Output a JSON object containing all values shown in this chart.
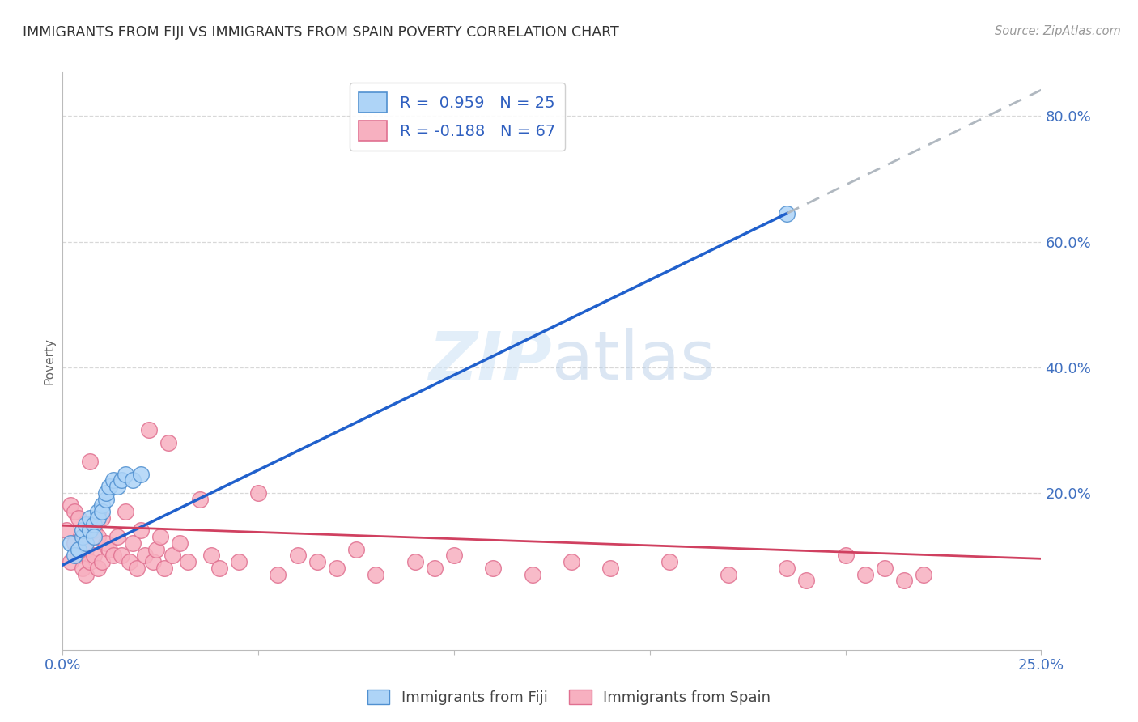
{
  "title": "IMMIGRANTS FROM FIJI VS IMMIGRANTS FROM SPAIN POVERTY CORRELATION CHART",
  "source_text": "Source: ZipAtlas.com",
  "ylabel": "Poverty",
  "x_min": 0.0,
  "x_max": 0.25,
  "y_min": -0.05,
  "y_max": 0.87,
  "fiji_color": "#aed4f7",
  "fiji_edge_color": "#5090d0",
  "spain_color": "#f7b0c0",
  "spain_edge_color": "#e07090",
  "fiji_line_color": "#2060cc",
  "spain_line_color": "#d04060",
  "dash_line_color": "#b0b8c0",
  "fiji_R": 0.959,
  "fiji_N": 25,
  "spain_R": -0.188,
  "spain_N": 67,
  "grid_color": "#d8d8d8",
  "background_color": "#ffffff",
  "fiji_scatter_x": [
    0.002,
    0.003,
    0.004,
    0.005,
    0.005,
    0.006,
    0.006,
    0.007,
    0.007,
    0.008,
    0.008,
    0.009,
    0.009,
    0.01,
    0.01,
    0.011,
    0.011,
    0.012,
    0.013,
    0.014,
    0.015,
    0.016,
    0.018,
    0.02,
    0.185
  ],
  "fiji_scatter_y": [
    0.12,
    0.1,
    0.11,
    0.13,
    0.14,
    0.12,
    0.15,
    0.14,
    0.16,
    0.15,
    0.13,
    0.17,
    0.16,
    0.18,
    0.17,
    0.19,
    0.2,
    0.21,
    0.22,
    0.21,
    0.22,
    0.23,
    0.22,
    0.23,
    0.645
  ],
  "spain_scatter_x": [
    0.001,
    0.002,
    0.002,
    0.003,
    0.003,
    0.004,
    0.004,
    0.005,
    0.005,
    0.006,
    0.006,
    0.007,
    0.007,
    0.007,
    0.008,
    0.008,
    0.009,
    0.009,
    0.01,
    0.01,
    0.011,
    0.012,
    0.013,
    0.014,
    0.015,
    0.016,
    0.017,
    0.018,
    0.019,
    0.02,
    0.021,
    0.022,
    0.023,
    0.024,
    0.025,
    0.026,
    0.027,
    0.028,
    0.03,
    0.032,
    0.035,
    0.038,
    0.04,
    0.045,
    0.05,
    0.055,
    0.06,
    0.065,
    0.07,
    0.075,
    0.08,
    0.09,
    0.095,
    0.1,
    0.11,
    0.12,
    0.13,
    0.14,
    0.155,
    0.17,
    0.185,
    0.19,
    0.2,
    0.205,
    0.21,
    0.215,
    0.22
  ],
  "spain_scatter_y": [
    0.14,
    0.09,
    0.18,
    0.12,
    0.17,
    0.1,
    0.16,
    0.08,
    0.13,
    0.07,
    0.11,
    0.09,
    0.15,
    0.25,
    0.1,
    0.14,
    0.08,
    0.13,
    0.09,
    0.16,
    0.12,
    0.11,
    0.1,
    0.13,
    0.1,
    0.17,
    0.09,
    0.12,
    0.08,
    0.14,
    0.1,
    0.3,
    0.09,
    0.11,
    0.13,
    0.08,
    0.28,
    0.1,
    0.12,
    0.09,
    0.19,
    0.1,
    0.08,
    0.09,
    0.2,
    0.07,
    0.1,
    0.09,
    0.08,
    0.11,
    0.07,
    0.09,
    0.08,
    0.1,
    0.08,
    0.07,
    0.09,
    0.08,
    0.09,
    0.07,
    0.08,
    0.06,
    0.1,
    0.07,
    0.08,
    0.06,
    0.07
  ],
  "fiji_line_x0": 0.0,
  "fiji_line_y0": 0.085,
  "fiji_line_x1": 0.185,
  "fiji_line_y1": 0.645,
  "spain_line_x0": 0.0,
  "spain_line_y0": 0.148,
  "spain_line_x1": 0.25,
  "spain_line_y1": 0.095
}
